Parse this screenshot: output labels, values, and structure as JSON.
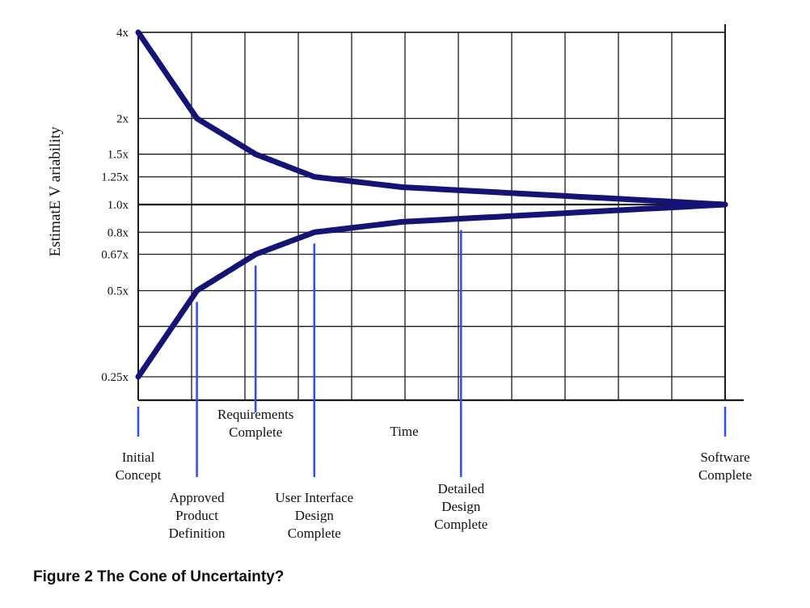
{
  "chart_data": {
    "type": "line",
    "title": "",
    "xlabel": "Time",
    "ylabel": "EstimatE V ariability",
    "xlim": [
      0,
      10
    ],
    "y_scale": "log2",
    "y_ticks": [
      {
        "value": 4,
        "label": "4x"
      },
      {
        "value": 2,
        "label": "2x"
      },
      {
        "value": 1.5,
        "label": "1.5x"
      },
      {
        "value": 1.25,
        "label": "1.25x"
      },
      {
        "value": 1.0,
        "label": "1.0x"
      },
      {
        "value": 0.8,
        "label": "0.8x"
      },
      {
        "value": 0.67,
        "label": "0.67x"
      },
      {
        "value": 0.5,
        "label": "0.5x"
      },
      {
        "value": 0.25,
        "label": "0.25x"
      }
    ],
    "grid": true,
    "series": [
      {
        "x": [
          0,
          1,
          2,
          3,
          4.5,
          10
        ],
        "values": [
          4,
          2,
          1.5,
          1.25,
          1.15,
          1.0
        ]
      },
      {
        "x": [
          0,
          1,
          2,
          3,
          4.5,
          10
        ],
        "values": [
          0.25,
          0.5,
          0.67,
          0.8,
          0.87,
          1.0
        ]
      }
    ],
    "milestones": [
      {
        "x": 0,
        "lines": [
          "Initial",
          "Concept"
        ],
        "placement": "below"
      },
      {
        "x": 1,
        "lines": [
          "Approved",
          "Product",
          "Definition"
        ],
        "placement": "below"
      },
      {
        "x": 2,
        "lines": [
          "Requirements",
          "Complete"
        ],
        "placement": "above"
      },
      {
        "x": 3,
        "lines": [
          "User Interface",
          "Design",
          "Complete"
        ],
        "placement": "below"
      },
      {
        "x": 5.5,
        "lines": [
          "Detailed",
          "Design",
          "Complete"
        ],
        "placement": "below"
      },
      {
        "x": 10,
        "lines": [
          "Software",
          "Complete"
        ],
        "placement": "below"
      }
    ]
  },
  "caption": "Figure 2 The Cone of Uncertainty?",
  "colors": {
    "curve": "#13137a",
    "milestone": "#2a4dff",
    "grid": "#1a1a1a"
  }
}
